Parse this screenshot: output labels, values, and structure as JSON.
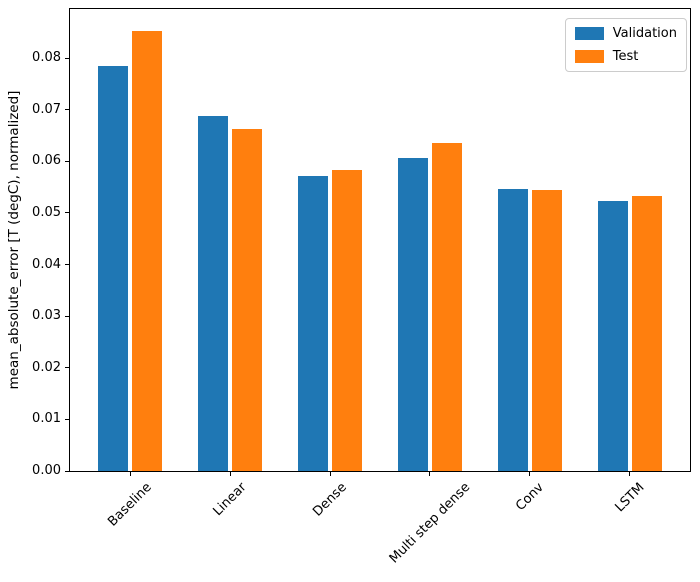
{
  "chart_data": {
    "type": "bar",
    "title": "",
    "xlabel": "",
    "ylabel": "mean_absolute_error [T (degC), normalized]",
    "categories": [
      "Baseline",
      "Linear",
      "Dense",
      "Multi step dense",
      "Conv",
      "LSTM"
    ],
    "series": [
      {
        "name": "Validation",
        "color": "#1f77b4",
        "values": [
          0.0785,
          0.0687,
          0.0572,
          0.0607,
          0.0546,
          0.0524
        ]
      },
      {
        "name": "Test",
        "color": "#ff7f0e",
        "values": [
          0.0852,
          0.0663,
          0.0584,
          0.0635,
          0.0544,
          0.0533
        ]
      }
    ],
    "ylim": [
      0,
      0.0895
    ],
    "yticks": [
      0.0,
      0.01,
      0.02,
      0.03,
      0.04,
      0.05,
      0.06,
      0.07,
      0.08
    ],
    "ytick_decimals": 2,
    "xtick_rotation_deg": 45,
    "grid": false,
    "legend_position": "upper right",
    "spine_color": "#000000",
    "background_color": "#ffffff"
  }
}
